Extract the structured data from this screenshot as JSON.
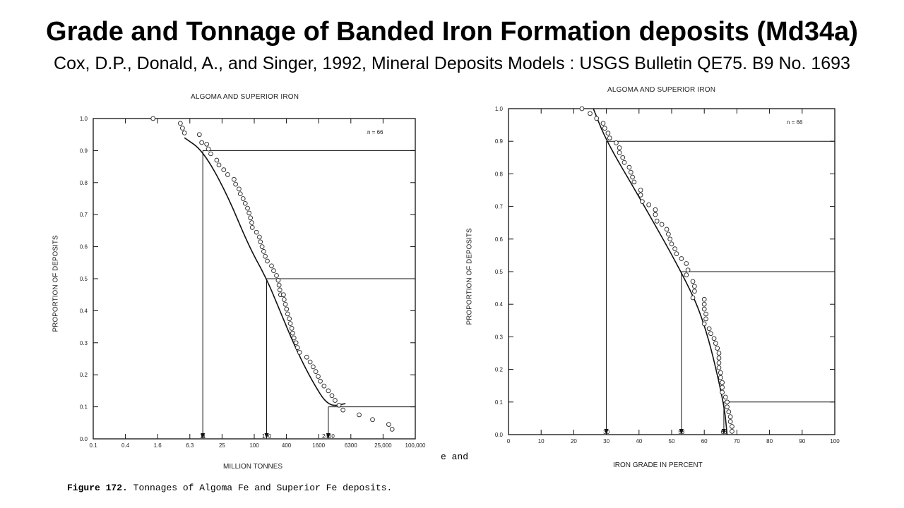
{
  "slide": {
    "title": "Grade and Tonnage of Banded Iron Formation deposits (Md34a)",
    "subtitle": "Cox, D.P., Donald, A., and Singer, 1992, Mineral Deposits Models : USGS Bulletin QE75. B9 No. 1693"
  },
  "caption": {
    "fragment": "e and",
    "figure_number": "Figure 172.",
    "text": "Tonnages of Algoma Fe and Superior Fe deposits."
  },
  "chart_data": [
    {
      "type": "scatter",
      "title": "ALGOMA AND SUPERIOR IRON",
      "xlabel": "MILLION TONNES",
      "ylabel": "PROPORTION OF DEPOSITS",
      "x_scale": "log",
      "x_ticks": [
        "0.1",
        "0.4",
        "1.6",
        "6.3",
        "25",
        "100",
        "400",
        "1600",
        "6300",
        "25,000",
        "100,000"
      ],
      "y_ticks": [
        "0.0",
        "0.1",
        "0.2",
        "0.3",
        "0.4",
        "0.5",
        "0.6",
        "0.7",
        "0.8",
        "0.9",
        "1.0"
      ],
      "xlim": [
        0.1,
        100000
      ],
      "ylim": [
        0,
        1
      ],
      "n_label": "n = 66",
      "markers": [
        {
          "label": "11",
          "x": 11,
          "y": 0.9
        },
        {
          "label": "170",
          "x": 170,
          "y": 0.5
        },
        {
          "label": "2400",
          "x": 2400,
          "y": 0.1
        }
      ],
      "curve": [
        [
          5,
          0.94
        ],
        [
          11,
          0.9
        ],
        [
          30,
          0.77
        ],
        [
          80,
          0.6
        ],
        [
          170,
          0.5
        ],
        [
          300,
          0.4
        ],
        [
          600,
          0.28
        ],
        [
          1200,
          0.18
        ],
        [
          2400,
          0.1
        ],
        [
          5000,
          0.11
        ]
      ],
      "points": [
        [
          1.3,
          1.0
        ],
        [
          4.2,
          0.985
        ],
        [
          4.6,
          0.97
        ],
        [
          5.0,
          0.955
        ],
        [
          9.5,
          0.95
        ],
        [
          10.5,
          0.925
        ],
        [
          13,
          0.92
        ],
        [
          14,
          0.905
        ],
        [
          15.5,
          0.89
        ],
        [
          20,
          0.87
        ],
        [
          22,
          0.855
        ],
        [
          27,
          0.84
        ],
        [
          32,
          0.825
        ],
        [
          42,
          0.81
        ],
        [
          45,
          0.795
        ],
        [
          52,
          0.78
        ],
        [
          55,
          0.765
        ],
        [
          62,
          0.75
        ],
        [
          68,
          0.735
        ],
        [
          75,
          0.72
        ],
        [
          80,
          0.705
        ],
        [
          85,
          0.69
        ],
        [
          90,
          0.675
        ],
        [
          92,
          0.66
        ],
        [
          110,
          0.645
        ],
        [
          125,
          0.63
        ],
        [
          130,
          0.615
        ],
        [
          140,
          0.6
        ],
        [
          150,
          0.585
        ],
        [
          160,
          0.57
        ],
        [
          175,
          0.555
        ],
        [
          210,
          0.54
        ],
        [
          230,
          0.525
        ],
        [
          260,
          0.51
        ],
        [
          280,
          0.495
        ],
        [
          290,
          0.48
        ],
        [
          300,
          0.465
        ],
        [
          310,
          0.45
        ],
        [
          350,
          0.45
        ],
        [
          360,
          0.435
        ],
        [
          380,
          0.42
        ],
        [
          400,
          0.405
        ],
        [
          420,
          0.39
        ],
        [
          450,
          0.375
        ],
        [
          470,
          0.36
        ],
        [
          500,
          0.345
        ],
        [
          520,
          0.33
        ],
        [
          550,
          0.315
        ],
        [
          600,
          0.3
        ],
        [
          640,
          0.285
        ],
        [
          700,
          0.27
        ],
        [
          950,
          0.255
        ],
        [
          1100,
          0.24
        ],
        [
          1250,
          0.225
        ],
        [
          1400,
          0.21
        ],
        [
          1550,
          0.195
        ],
        [
          1700,
          0.18
        ],
        [
          2000,
          0.165
        ],
        [
          2400,
          0.15
        ],
        [
          2800,
          0.135
        ],
        [
          3200,
          0.12
        ],
        [
          3800,
          0.105
        ],
        [
          4500,
          0.09
        ],
        [
          9000,
          0.075
        ],
        [
          16000,
          0.06
        ],
        [
          32000,
          0.045
        ],
        [
          37000,
          0.03
        ]
      ]
    },
    {
      "type": "scatter",
      "title": "ALGOMA AND SUPERIOR IRON",
      "xlabel": "IRON GRADE IN PERCENT",
      "ylabel": "PROPORTION OF DEPOSITS",
      "x_scale": "linear",
      "x_ticks": [
        "0",
        "10",
        "20",
        "30",
        "40",
        "50",
        "60",
        "70",
        "80",
        "90",
        "100"
      ],
      "y_ticks": [
        "0.0",
        "0.1",
        "0.2",
        "0.3",
        "0.4",
        "0.5",
        "0.6",
        "0.7",
        "0.8",
        "0.9",
        "1.0"
      ],
      "xlim": [
        0,
        100
      ],
      "ylim": [
        0,
        1
      ],
      "n_label": "n = 66",
      "markers": [
        {
          "label": "30",
          "x": 30,
          "y": 0.9
        },
        {
          "label": "53",
          "x": 53,
          "y": 0.5
        },
        {
          "label": "66",
          "x": 66,
          "y": 0.1
        }
      ],
      "curve": [
        [
          26,
          1.0
        ],
        [
          30,
          0.9
        ],
        [
          40,
          0.73
        ],
        [
          53,
          0.5
        ],
        [
          60,
          0.35
        ],
        [
          66,
          0.1
        ],
        [
          67,
          0.0
        ]
      ],
      "points": [
        [
          22.5,
          1.0
        ],
        [
          25,
          0.985
        ],
        [
          27,
          0.97
        ],
        [
          29,
          0.955
        ],
        [
          29.5,
          0.94
        ],
        [
          30.5,
          0.925
        ],
        [
          31,
          0.91
        ],
        [
          33,
          0.895
        ],
        [
          34,
          0.88
        ],
        [
          34,
          0.865
        ],
        [
          35,
          0.85
        ],
        [
          35.5,
          0.835
        ],
        [
          37,
          0.82
        ],
        [
          37.5,
          0.805
        ],
        [
          38,
          0.79
        ],
        [
          38.5,
          0.775
        ],
        [
          40.5,
          0.75
        ],
        [
          40.5,
          0.735
        ],
        [
          41,
          0.715
        ],
        [
          43,
          0.705
        ],
        [
          45,
          0.69
        ],
        [
          45,
          0.675
        ],
        [
          45.5,
          0.655
        ],
        [
          47,
          0.645
        ],
        [
          48.5,
          0.63
        ],
        [
          49,
          0.615
        ],
        [
          49.5,
          0.6
        ],
        [
          50,
          0.585
        ],
        [
          51,
          0.57
        ],
        [
          51.5,
          0.555
        ],
        [
          53,
          0.54
        ],
        [
          54.5,
          0.525
        ],
        [
          55,
          0.505
        ],
        [
          54.5,
          0.49
        ],
        [
          56.5,
          0.47
        ],
        [
          57,
          0.455
        ],
        [
          57,
          0.44
        ],
        [
          56.5,
          0.42
        ],
        [
          60,
          0.415
        ],
        [
          60,
          0.4
        ],
        [
          60,
          0.385
        ],
        [
          60.5,
          0.37
        ],
        [
          60.5,
          0.355
        ],
        [
          60,
          0.34
        ],
        [
          61.5,
          0.325
        ],
        [
          62,
          0.31
        ],
        [
          63,
          0.295
        ],
        [
          63.5,
          0.28
        ],
        [
          64,
          0.265
        ],
        [
          64.5,
          0.25
        ],
        [
          64.5,
          0.235
        ],
        [
          64.5,
          0.22
        ],
        [
          64.5,
          0.205
        ],
        [
          65,
          0.19
        ],
        [
          65,
          0.175
        ],
        [
          65.5,
          0.16
        ],
        [
          65.5,
          0.145
        ],
        [
          65.5,
          0.13
        ],
        [
          66.5,
          0.115
        ],
        [
          67,
          0.1
        ],
        [
          67,
          0.085
        ],
        [
          67.5,
          0.07
        ],
        [
          68,
          0.055
        ],
        [
          68,
          0.04
        ],
        [
          68.5,
          0.025
        ],
        [
          68.5,
          0.01
        ]
      ]
    }
  ]
}
